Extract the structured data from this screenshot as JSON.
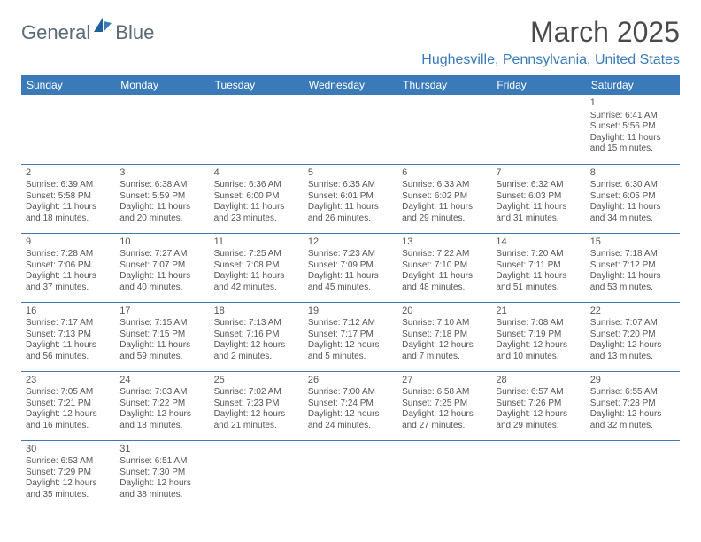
{
  "brand": {
    "part1": "General",
    "part2": "Blue"
  },
  "title": "March 2025",
  "location": "Hughesville, Pennsylvania, United States",
  "colors": {
    "header_bg": "#3a7ab8",
    "header_text": "#ffffff",
    "border": "#3a7ab8",
    "text": "#555555",
    "title": "#4a4a4a"
  },
  "day_headers": [
    "Sunday",
    "Monday",
    "Tuesday",
    "Wednesday",
    "Thursday",
    "Friday",
    "Saturday"
  ],
  "weeks": [
    [
      null,
      null,
      null,
      null,
      null,
      null,
      {
        "n": "1",
        "sr": "Sunrise: 6:41 AM",
        "ss": "Sunset: 5:56 PM",
        "d1": "Daylight: 11 hours",
        "d2": "and 15 minutes."
      }
    ],
    [
      {
        "n": "2",
        "sr": "Sunrise: 6:39 AM",
        "ss": "Sunset: 5:58 PM",
        "d1": "Daylight: 11 hours",
        "d2": "and 18 minutes."
      },
      {
        "n": "3",
        "sr": "Sunrise: 6:38 AM",
        "ss": "Sunset: 5:59 PM",
        "d1": "Daylight: 11 hours",
        "d2": "and 20 minutes."
      },
      {
        "n": "4",
        "sr": "Sunrise: 6:36 AM",
        "ss": "Sunset: 6:00 PM",
        "d1": "Daylight: 11 hours",
        "d2": "and 23 minutes."
      },
      {
        "n": "5",
        "sr": "Sunrise: 6:35 AM",
        "ss": "Sunset: 6:01 PM",
        "d1": "Daylight: 11 hours",
        "d2": "and 26 minutes."
      },
      {
        "n": "6",
        "sr": "Sunrise: 6:33 AM",
        "ss": "Sunset: 6:02 PM",
        "d1": "Daylight: 11 hours",
        "d2": "and 29 minutes."
      },
      {
        "n": "7",
        "sr": "Sunrise: 6:32 AM",
        "ss": "Sunset: 6:03 PM",
        "d1": "Daylight: 11 hours",
        "d2": "and 31 minutes."
      },
      {
        "n": "8",
        "sr": "Sunrise: 6:30 AM",
        "ss": "Sunset: 6:05 PM",
        "d1": "Daylight: 11 hours",
        "d2": "and 34 minutes."
      }
    ],
    [
      {
        "n": "9",
        "sr": "Sunrise: 7:28 AM",
        "ss": "Sunset: 7:06 PM",
        "d1": "Daylight: 11 hours",
        "d2": "and 37 minutes."
      },
      {
        "n": "10",
        "sr": "Sunrise: 7:27 AM",
        "ss": "Sunset: 7:07 PM",
        "d1": "Daylight: 11 hours",
        "d2": "and 40 minutes."
      },
      {
        "n": "11",
        "sr": "Sunrise: 7:25 AM",
        "ss": "Sunset: 7:08 PM",
        "d1": "Daylight: 11 hours",
        "d2": "and 42 minutes."
      },
      {
        "n": "12",
        "sr": "Sunrise: 7:23 AM",
        "ss": "Sunset: 7:09 PM",
        "d1": "Daylight: 11 hours",
        "d2": "and 45 minutes."
      },
      {
        "n": "13",
        "sr": "Sunrise: 7:22 AM",
        "ss": "Sunset: 7:10 PM",
        "d1": "Daylight: 11 hours",
        "d2": "and 48 minutes."
      },
      {
        "n": "14",
        "sr": "Sunrise: 7:20 AM",
        "ss": "Sunset: 7:11 PM",
        "d1": "Daylight: 11 hours",
        "d2": "and 51 minutes."
      },
      {
        "n": "15",
        "sr": "Sunrise: 7:18 AM",
        "ss": "Sunset: 7:12 PM",
        "d1": "Daylight: 11 hours",
        "d2": "and 53 minutes."
      }
    ],
    [
      {
        "n": "16",
        "sr": "Sunrise: 7:17 AM",
        "ss": "Sunset: 7:13 PM",
        "d1": "Daylight: 11 hours",
        "d2": "and 56 minutes."
      },
      {
        "n": "17",
        "sr": "Sunrise: 7:15 AM",
        "ss": "Sunset: 7:15 PM",
        "d1": "Daylight: 11 hours",
        "d2": "and 59 minutes."
      },
      {
        "n": "18",
        "sr": "Sunrise: 7:13 AM",
        "ss": "Sunset: 7:16 PM",
        "d1": "Daylight: 12 hours",
        "d2": "and 2 minutes."
      },
      {
        "n": "19",
        "sr": "Sunrise: 7:12 AM",
        "ss": "Sunset: 7:17 PM",
        "d1": "Daylight: 12 hours",
        "d2": "and 5 minutes."
      },
      {
        "n": "20",
        "sr": "Sunrise: 7:10 AM",
        "ss": "Sunset: 7:18 PM",
        "d1": "Daylight: 12 hours",
        "d2": "and 7 minutes."
      },
      {
        "n": "21",
        "sr": "Sunrise: 7:08 AM",
        "ss": "Sunset: 7:19 PM",
        "d1": "Daylight: 12 hours",
        "d2": "and 10 minutes."
      },
      {
        "n": "22",
        "sr": "Sunrise: 7:07 AM",
        "ss": "Sunset: 7:20 PM",
        "d1": "Daylight: 12 hours",
        "d2": "and 13 minutes."
      }
    ],
    [
      {
        "n": "23",
        "sr": "Sunrise: 7:05 AM",
        "ss": "Sunset: 7:21 PM",
        "d1": "Daylight: 12 hours",
        "d2": "and 16 minutes."
      },
      {
        "n": "24",
        "sr": "Sunrise: 7:03 AM",
        "ss": "Sunset: 7:22 PM",
        "d1": "Daylight: 12 hours",
        "d2": "and 18 minutes."
      },
      {
        "n": "25",
        "sr": "Sunrise: 7:02 AM",
        "ss": "Sunset: 7:23 PM",
        "d1": "Daylight: 12 hours",
        "d2": "and 21 minutes."
      },
      {
        "n": "26",
        "sr": "Sunrise: 7:00 AM",
        "ss": "Sunset: 7:24 PM",
        "d1": "Daylight: 12 hours",
        "d2": "and 24 minutes."
      },
      {
        "n": "27",
        "sr": "Sunrise: 6:58 AM",
        "ss": "Sunset: 7:25 PM",
        "d1": "Daylight: 12 hours",
        "d2": "and 27 minutes."
      },
      {
        "n": "28",
        "sr": "Sunrise: 6:57 AM",
        "ss": "Sunset: 7:26 PM",
        "d1": "Daylight: 12 hours",
        "d2": "and 29 minutes."
      },
      {
        "n": "29",
        "sr": "Sunrise: 6:55 AM",
        "ss": "Sunset: 7:28 PM",
        "d1": "Daylight: 12 hours",
        "d2": "and 32 minutes."
      }
    ],
    [
      {
        "n": "30",
        "sr": "Sunrise: 6:53 AM",
        "ss": "Sunset: 7:29 PM",
        "d1": "Daylight: 12 hours",
        "d2": "and 35 minutes."
      },
      {
        "n": "31",
        "sr": "Sunrise: 6:51 AM",
        "ss": "Sunset: 7:30 PM",
        "d1": "Daylight: 12 hours",
        "d2": "and 38 minutes."
      },
      null,
      null,
      null,
      null,
      null
    ]
  ]
}
